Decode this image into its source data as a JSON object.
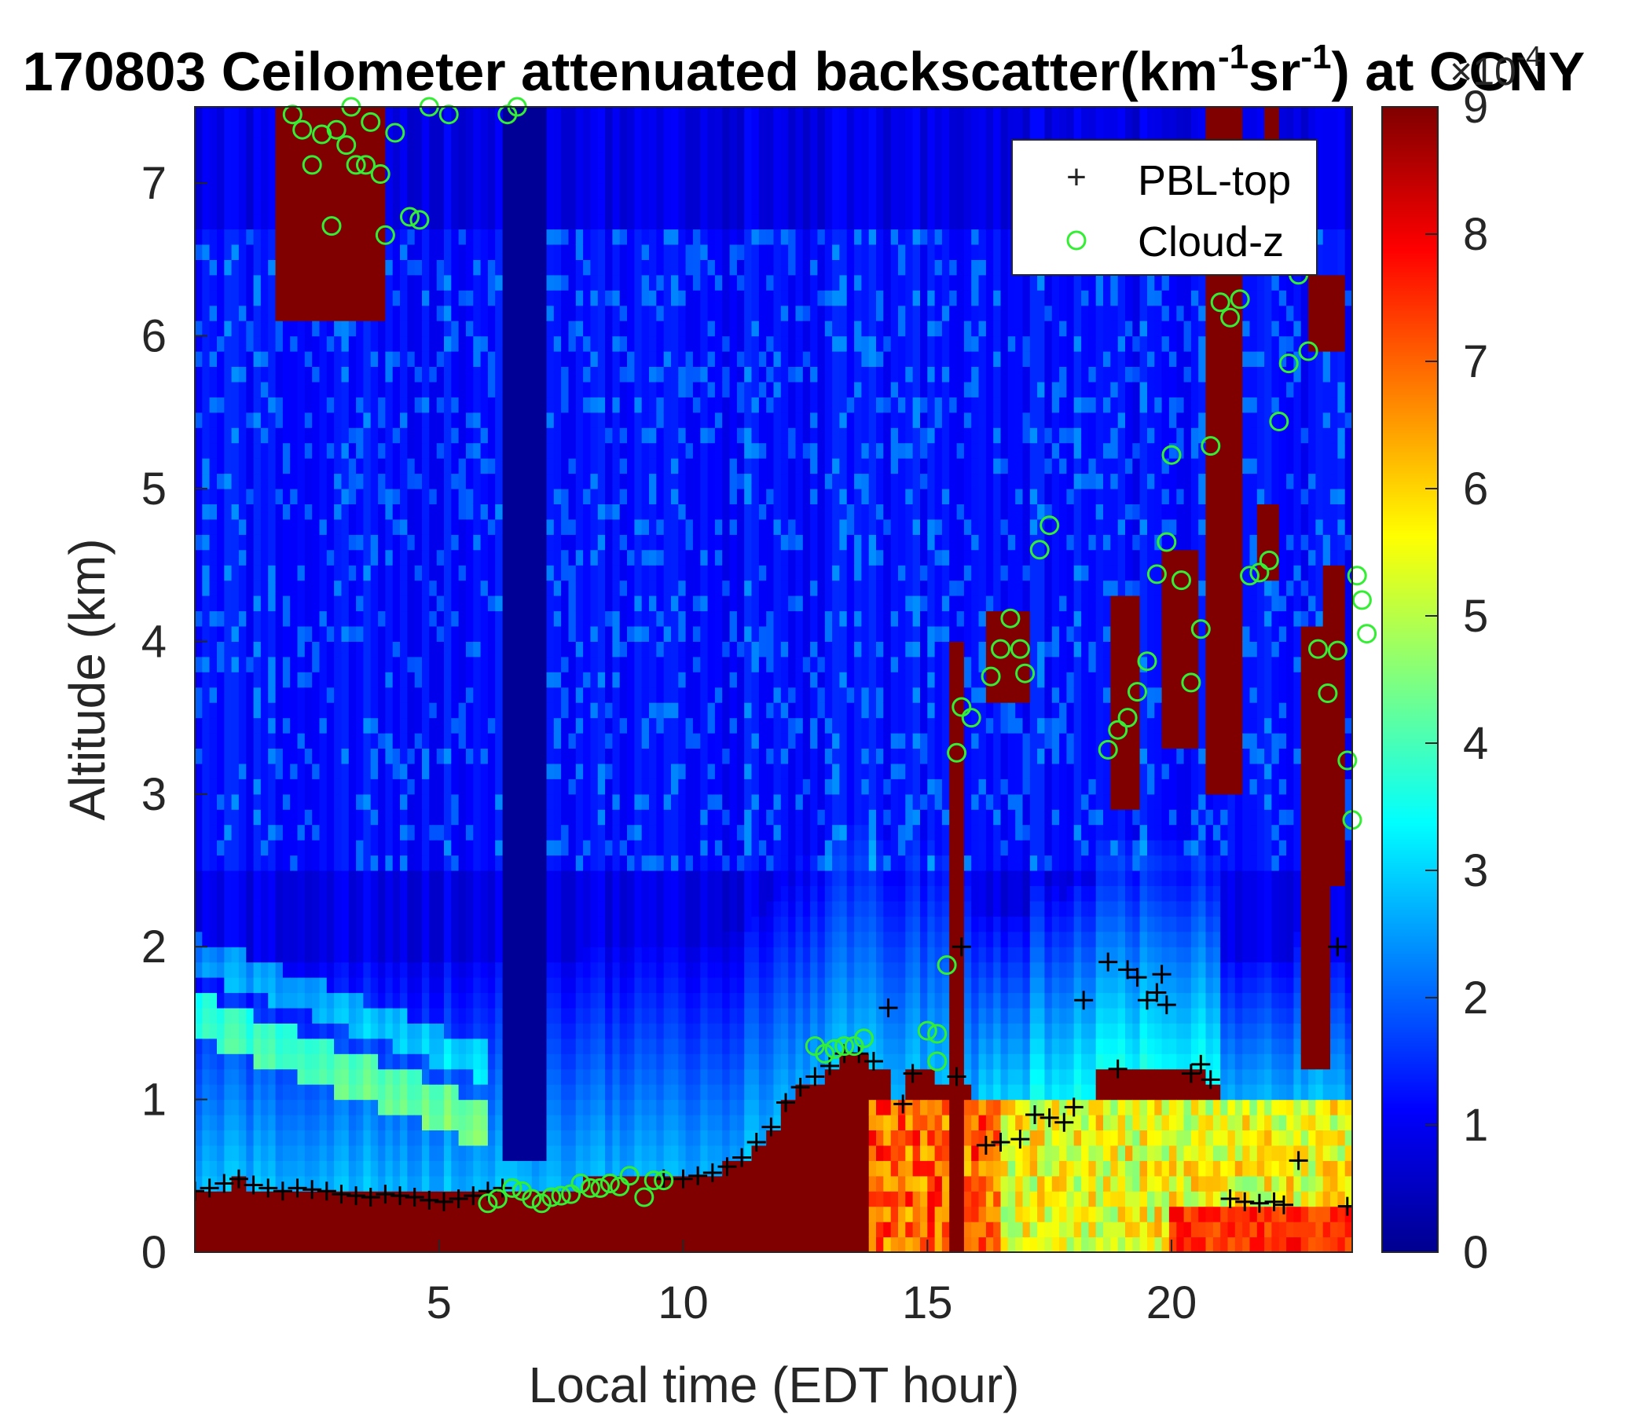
{
  "chart_data": {
    "type": "heatmap",
    "title": {
      "prefix": "170803 Ceilometer attenuated backscatter(km",
      "exp1": "-1",
      "mid": "sr",
      "exp2": "-1",
      "suffix": ") at CCNY"
    },
    "xlabel": "Local time (EDT hour)",
    "ylabel": "Altitude (km)",
    "xlim": [
      0,
      23.7
    ],
    "ylim": [
      0,
      7.5
    ],
    "xticks": [
      5,
      10,
      15,
      20
    ],
    "yticks": [
      0,
      1,
      2,
      3,
      4,
      5,
      6,
      7
    ],
    "grid": false,
    "colormap": "jet",
    "colorbar": {
      "min": 0,
      "max": 9,
      "ticks": [
        0,
        1,
        2,
        3,
        4,
        5,
        6,
        7,
        8,
        9
      ],
      "multiplier_base": "×10",
      "multiplier_exp": "-4"
    },
    "legend": {
      "placement": "top-right",
      "entries": [
        {
          "label": "PBL-top",
          "marker": "plus",
          "color": "#000000"
        },
        {
          "label": "Cloud-z",
          "marker": "circle",
          "color": "#33ee33"
        }
      ]
    },
    "series": [
      {
        "name": "PBL-top",
        "points": [
          [
            0.0,
            0.4
          ],
          [
            0.3,
            0.42
          ],
          [
            0.6,
            0.45
          ],
          [
            0.9,
            0.48
          ],
          [
            1.2,
            0.44
          ],
          [
            1.5,
            0.42
          ],
          [
            1.8,
            0.4
          ],
          [
            2.1,
            0.42
          ],
          [
            2.4,
            0.41
          ],
          [
            2.7,
            0.4
          ],
          [
            3.0,
            0.38
          ],
          [
            3.3,
            0.37
          ],
          [
            3.6,
            0.36
          ],
          [
            3.9,
            0.38
          ],
          [
            4.2,
            0.37
          ],
          [
            4.5,
            0.36
          ],
          [
            4.8,
            0.34
          ],
          [
            5.1,
            0.33
          ],
          [
            5.4,
            0.35
          ],
          [
            5.7,
            0.37
          ],
          [
            6.0,
            0.4
          ],
          [
            6.3,
            0.42
          ],
          [
            9.6,
            0.48
          ],
          [
            10.0,
            0.48
          ],
          [
            10.3,
            0.5
          ],
          [
            10.6,
            0.52
          ],
          [
            10.9,
            0.56
          ],
          [
            11.2,
            0.62
          ],
          [
            11.5,
            0.72
          ],
          [
            11.8,
            0.82
          ],
          [
            12.1,
            0.98
          ],
          [
            12.4,
            1.08
          ],
          [
            12.7,
            1.15
          ],
          [
            13.0,
            1.22
          ],
          [
            13.3,
            1.3
          ],
          [
            13.6,
            1.3
          ],
          [
            13.9,
            1.25
          ],
          [
            14.2,
            1.6
          ],
          [
            14.5,
            0.97
          ],
          [
            14.7,
            1.17
          ],
          [
            15.6,
            1.15
          ],
          [
            15.7,
            2.0
          ],
          [
            16.2,
            0.7
          ],
          [
            16.5,
            0.72
          ],
          [
            16.9,
            0.74
          ],
          [
            17.2,
            0.9
          ],
          [
            17.5,
            0.88
          ],
          [
            17.8,
            0.85
          ],
          [
            18.0,
            0.95
          ],
          [
            18.2,
            1.65
          ],
          [
            18.7,
            1.9
          ],
          [
            18.9,
            1.2
          ],
          [
            19.1,
            1.85
          ],
          [
            19.3,
            1.8
          ],
          [
            19.5,
            1.65
          ],
          [
            19.7,
            1.7
          ],
          [
            19.8,
            1.82
          ],
          [
            19.9,
            1.62
          ],
          [
            20.4,
            1.17
          ],
          [
            20.6,
            1.23
          ],
          [
            20.8,
            1.13
          ],
          [
            21.2,
            0.35
          ],
          [
            21.5,
            0.33
          ],
          [
            21.8,
            0.32
          ],
          [
            22.1,
            0.33
          ],
          [
            22.3,
            0.31
          ],
          [
            22.6,
            0.6
          ],
          [
            23.4,
            2.0
          ],
          [
            23.6,
            0.3
          ],
          [
            23.8,
            0.3
          ]
        ]
      },
      {
        "name": "Cloud-z",
        "points": [
          [
            2.0,
            7.45
          ],
          [
            2.2,
            7.35
          ],
          [
            2.4,
            7.12
          ],
          [
            2.6,
            7.32
          ],
          [
            2.8,
            6.72
          ],
          [
            2.9,
            7.35
          ],
          [
            3.1,
            7.25
          ],
          [
            3.2,
            7.5
          ],
          [
            3.3,
            7.12
          ],
          [
            3.5,
            7.12
          ],
          [
            3.6,
            7.4
          ],
          [
            3.8,
            7.06
          ],
          [
            3.9,
            6.66
          ],
          [
            4.1,
            7.33
          ],
          [
            4.4,
            6.78
          ],
          [
            4.6,
            6.76
          ],
          [
            4.8,
            7.5
          ],
          [
            5.2,
            7.45
          ],
          [
            6.4,
            7.45
          ],
          [
            6.6,
            7.5
          ],
          [
            6.0,
            0.32
          ],
          [
            6.2,
            0.35
          ],
          [
            6.5,
            0.42
          ],
          [
            6.7,
            0.4
          ],
          [
            6.9,
            0.35
          ],
          [
            7.1,
            0.32
          ],
          [
            7.3,
            0.36
          ],
          [
            7.5,
            0.37
          ],
          [
            7.7,
            0.38
          ],
          [
            7.9,
            0.45
          ],
          [
            8.1,
            0.42
          ],
          [
            8.3,
            0.42
          ],
          [
            8.5,
            0.45
          ],
          [
            8.7,
            0.43
          ],
          [
            8.9,
            0.5
          ],
          [
            9.2,
            0.36
          ],
          [
            9.4,
            0.47
          ],
          [
            9.6,
            0.47
          ],
          [
            12.7,
            1.35
          ],
          [
            12.9,
            1.3
          ],
          [
            13.1,
            1.33
          ],
          [
            13.3,
            1.35
          ],
          [
            13.5,
            1.35
          ],
          [
            13.7,
            1.4
          ],
          [
            15.0,
            1.45
          ],
          [
            15.2,
            1.43
          ],
          [
            15.2,
            1.25
          ],
          [
            15.4,
            1.88
          ],
          [
            15.6,
            3.27
          ],
          [
            15.7,
            3.57
          ],
          [
            15.9,
            3.5
          ],
          [
            16.3,
            3.77
          ],
          [
            16.5,
            3.95
          ],
          [
            16.7,
            4.15
          ],
          [
            16.9,
            3.95
          ],
          [
            17.0,
            3.79
          ],
          [
            17.3,
            4.6
          ],
          [
            17.5,
            4.76
          ],
          [
            18.7,
            3.29
          ],
          [
            18.9,
            3.42
          ],
          [
            19.1,
            3.5
          ],
          [
            19.3,
            3.67
          ],
          [
            19.5,
            3.87
          ],
          [
            19.7,
            4.44
          ],
          [
            19.9,
            4.65
          ],
          [
            20.0,
            5.22
          ],
          [
            20.2,
            4.4
          ],
          [
            20.4,
            3.73
          ],
          [
            20.6,
            4.08
          ],
          [
            20.8,
            5.28
          ],
          [
            21.0,
            6.22
          ],
          [
            21.2,
            6.12
          ],
          [
            21.4,
            6.24
          ],
          [
            21.6,
            4.43
          ],
          [
            21.8,
            4.45
          ],
          [
            22.0,
            4.53
          ],
          [
            22.2,
            5.44
          ],
          [
            22.4,
            5.82
          ],
          [
            22.6,
            6.4
          ],
          [
            22.8,
            5.9
          ],
          [
            23.0,
            3.95
          ],
          [
            23.2,
            3.66
          ],
          [
            23.4,
            3.94
          ],
          [
            23.6,
            3.22
          ],
          [
            23.7,
            2.83
          ],
          [
            23.8,
            4.43
          ],
          [
            23.9,
            4.27
          ],
          [
            24.0,
            4.05
          ]
        ]
      }
    ]
  }
}
